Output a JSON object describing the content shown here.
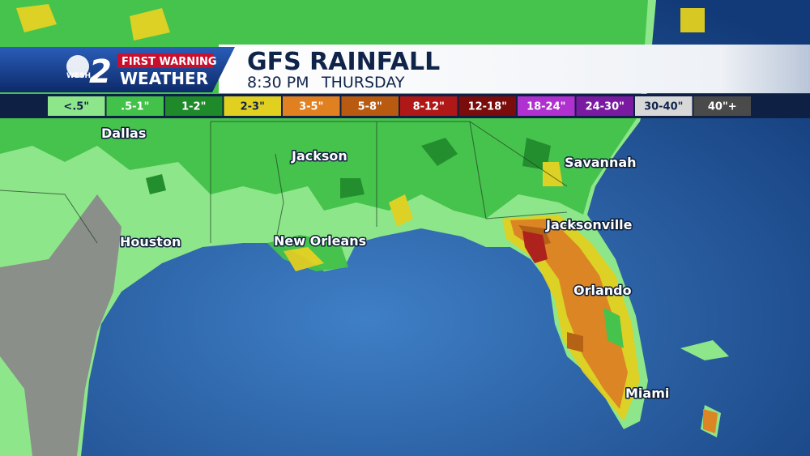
{
  "header": {
    "logo": {
      "station": "WESH",
      "channel": "2",
      "brand": "FIRST WARNING",
      "product": "WEATHER"
    },
    "title": "GFS RAINFALL",
    "time": "8:30 PM",
    "day": "THURSDAY"
  },
  "legend": [
    {
      "label": "<.5\"",
      "color": "#8ee68a"
    },
    {
      "label": ".5-1\"",
      "color": "#43c24a"
    },
    {
      "label": "1-2\"",
      "color": "#1e8a2a"
    },
    {
      "label": "2-3\"",
      "color": "#e2d020"
    },
    {
      "label": "3-5\"",
      "color": "#e08020"
    },
    {
      "label": "5-8\"",
      "color": "#b85a10"
    },
    {
      "label": "8-12\"",
      "color": "#b01818"
    },
    {
      "label": "12-18\"",
      "color": "#7a0c0c"
    },
    {
      "label": "18-24\"",
      "color": "#b030d0"
    },
    {
      "label": "24-30\"",
      "color": "#7a1aa0"
    },
    {
      "label": "30-40\"",
      "color": "#d8d8d8"
    },
    {
      "label": "40\"+",
      "color": "#4a4a4a"
    }
  ],
  "cities": [
    "Dallas",
    "Jackson",
    "Savannah",
    "Houston",
    "New Orleans",
    "Jacksonville",
    "Orlando",
    "Miami"
  ]
}
